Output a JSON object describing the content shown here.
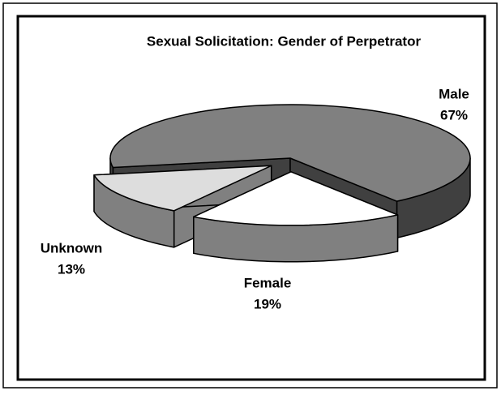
{
  "chart_data": {
    "type": "pie3d",
    "title": "Sexual Solicitation: Gender of Perpetrator",
    "categories": [
      "Male",
      "Female",
      "Unknown"
    ],
    "values": [
      67,
      19,
      13
    ],
    "value_labels": [
      "67%",
      "19%",
      "13%"
    ],
    "colors": [
      "#808080",
      "#ffffff",
      "#dddddd"
    ],
    "side_colors": [
      "#404040",
      "#808080",
      "#808080"
    ]
  }
}
